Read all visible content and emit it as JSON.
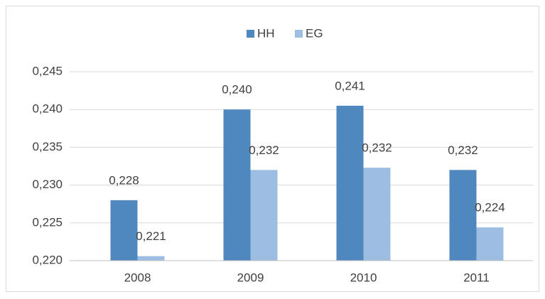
{
  "chart_data": {
    "type": "bar",
    "categories": [
      "2008",
      "2009",
      "2010",
      "2011"
    ],
    "series": [
      {
        "name": "HH",
        "color": "#4f87bf",
        "values": [
          0.228,
          0.24,
          0.2405,
          0.232
        ],
        "value_labels": [
          "0,228",
          "0,240",
          "0,241",
          "0,232"
        ]
      },
      {
        "name": "EG",
        "color": "#9dbde3",
        "values": [
          0.2206,
          0.232,
          0.2323,
          0.2244
        ],
        "value_labels": [
          "0,221",
          "0,232",
          "0,232",
          "0,224"
        ]
      }
    ],
    "ylim": [
      0.22,
      0.245
    ],
    "yticks": [
      {
        "value": 0.22,
        "label": "0,220"
      },
      {
        "value": 0.225,
        "label": "0,225"
      },
      {
        "value": 0.23,
        "label": "0,230"
      },
      {
        "value": 0.235,
        "label": "0,235"
      },
      {
        "value": 0.24,
        "label": "0,240"
      },
      {
        "value": 0.245,
        "label": "0,245"
      }
    ],
    "grid": true,
    "legend": "top"
  }
}
